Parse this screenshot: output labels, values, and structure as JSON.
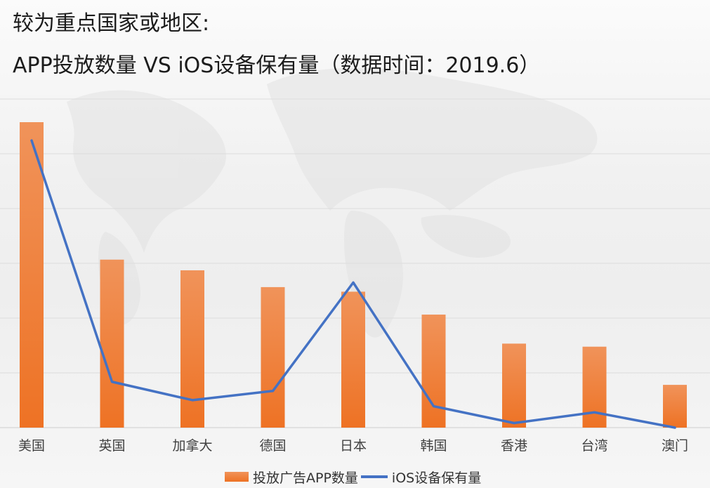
{
  "title": {
    "line1": "较为重点国家或地区:",
    "line2": "APP投放数量 VS iOS设备保有量（数据时间：2019.6）"
  },
  "legend": {
    "bar_label": "投放广告APP数量",
    "line_label": "iOS设备保有量"
  },
  "colors": {
    "bar_top": "#f0935a",
    "bar_bottom": "#ee7224",
    "line": "#4472c4",
    "grid": "#dcdcdc",
    "axis_text": "#404040"
  },
  "chart_data": {
    "type": "bar",
    "categories": [
      "美国",
      "英国",
      "加拿大",
      "德国",
      "日本",
      "韩国",
      "香港",
      "台湾",
      "澳门"
    ],
    "series": [
      {
        "name": "投放广告APP数量",
        "type": "bar",
        "values": [
          100,
          55,
          51.5,
          46,
          44.5,
          37,
          27.5,
          26.5,
          14
        ]
      },
      {
        "name": "iOS设备保有量",
        "type": "line",
        "values": [
          94,
          15,
          9,
          12,
          47.5,
          7,
          1.5,
          5,
          0
        ]
      }
    ],
    "ylim": [
      0,
      100
    ],
    "grid": true,
    "y_axis_labels_visible": false,
    "legend_position": "bottom",
    "xlabel": "",
    "ylabel": ""
  }
}
